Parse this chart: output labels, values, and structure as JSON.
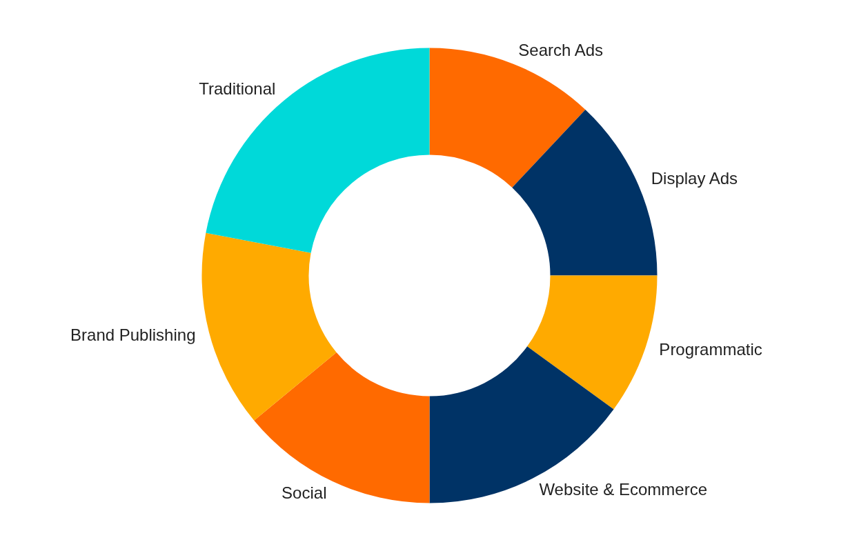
{
  "chart_data": {
    "type": "donut",
    "categories": [
      "Search Ads",
      "Display Ads",
      "Programmatic",
      "Website & Ecommerce",
      "Social",
      "Brand Publishing",
      "Traditional"
    ],
    "values": [
      12,
      13,
      10,
      15,
      14,
      14,
      22
    ],
    "colors": [
      "#ff6a00",
      "#003366",
      "#ffaa00",
      "#003366",
      "#ff6a00",
      "#ffaa00",
      "#00d9d9"
    ]
  }
}
